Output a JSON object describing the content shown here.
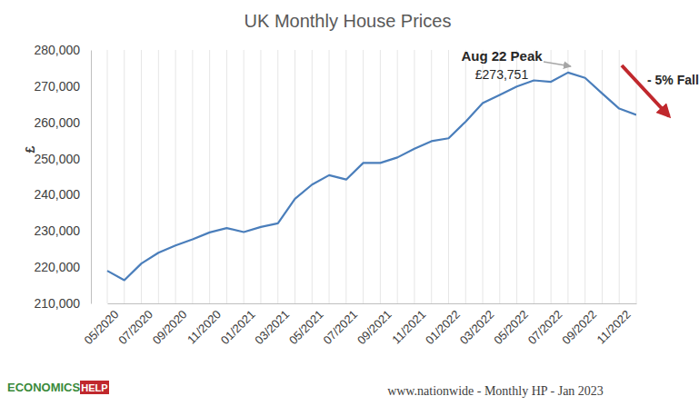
{
  "chart_data": {
    "type": "line",
    "title": "UK Monthly House Prices",
    "y_label": "£",
    "categories": [
      "05/2020",
      null,
      "07/2020",
      null,
      "09/2020",
      null,
      "11/2020",
      null,
      "01/2021",
      null,
      "03/2021",
      null,
      "05/2021",
      null,
      "07/2021",
      null,
      "09/2021",
      null,
      "11/2021",
      null,
      "01/2022",
      null,
      "03/2022",
      null,
      "05/2022",
      null,
      "07/2022",
      null,
      "09/2022",
      null,
      "11/2022",
      null
    ],
    "values": [
      219000,
      216400,
      221000,
      224000,
      226000,
      227700,
      229600,
      230800,
      229700,
      231100,
      232100,
      238900,
      242800,
      245400,
      244200,
      248800,
      248800,
      250300,
      252700,
      254800,
      255600,
      260200,
      265300,
      267600,
      269900,
      271600,
      271200,
      273751,
      272300,
      268000,
      263800,
      262100
    ],
    "color": "#4a7ebb",
    "ylim": [
      210000,
      280000
    ],
    "yticks": [
      {
        "value": 210000,
        "label": "210,000"
      },
      {
        "value": 220000,
        "label": "220,000"
      },
      {
        "value": 230000,
        "label": "230,000"
      },
      {
        "value": 240000,
        "label": "240,000"
      },
      {
        "value": 250000,
        "label": "250,000"
      },
      {
        "value": 260000,
        "label": "260,000"
      },
      {
        "value": 270000,
        "label": "270,000"
      },
      {
        "value": 280000,
        "label": "280,000"
      }
    ],
    "grid": "x",
    "annotations": [
      "Aug 22 Peak",
      "£273,751",
      "- 5% Fall"
    ],
    "source": "www.nationwide - Monthly HP - Jan 2023",
    "logo": [
      "ECONOMICS",
      "HELP"
    ]
  }
}
